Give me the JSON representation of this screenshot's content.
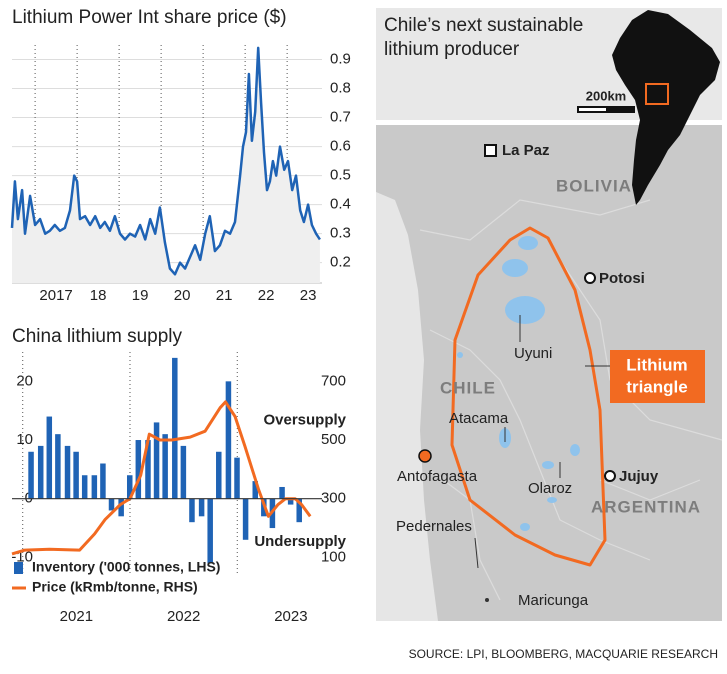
{
  "chart_data": [
    {
      "type": "line",
      "title": "Lithium Power Int share price ($)",
      "color": "#1f63b5",
      "area_color": "#efefef",
      "x": [
        2016.45,
        2016.52,
        2016.59,
        2016.69,
        2016.76,
        2016.88,
        2017.0,
        2017.12,
        2017.24,
        2017.35,
        2017.47,
        2017.59,
        2017.71,
        2017.83,
        2017.93,
        2018.0,
        2018.07,
        2018.19,
        2018.31,
        2018.43,
        2018.55,
        2018.66,
        2018.78,
        2018.9,
        2019.02,
        2019.14,
        2019.26,
        2019.38,
        2019.5,
        2019.62,
        2019.74,
        2019.86,
        2019.97,
        2020.09,
        2020.21,
        2020.33,
        2020.45,
        2020.57,
        2020.69,
        2020.81,
        2020.93,
        2021.05,
        2021.16,
        2021.28,
        2021.4,
        2021.52,
        2021.64,
        2021.76,
        2021.88,
        2021.95,
        2022.02,
        2022.09,
        2022.16,
        2022.24,
        2022.31,
        2022.38,
        2022.45,
        2022.52,
        2022.59,
        2022.66,
        2022.74,
        2022.83,
        2022.93,
        2023.02,
        2023.12,
        2023.21,
        2023.31,
        2023.4,
        2023.5,
        2023.59,
        2023.69,
        2023.78
      ],
      "values": [
        0.32,
        0.48,
        0.35,
        0.45,
        0.3,
        0.43,
        0.33,
        0.35,
        0.3,
        0.31,
        0.33,
        0.31,
        0.32,
        0.38,
        0.5,
        0.48,
        0.35,
        0.36,
        0.33,
        0.36,
        0.32,
        0.34,
        0.31,
        0.36,
        0.3,
        0.28,
        0.3,
        0.29,
        0.33,
        0.28,
        0.35,
        0.3,
        0.39,
        0.27,
        0.18,
        0.16,
        0.2,
        0.18,
        0.22,
        0.26,
        0.21,
        0.3,
        0.36,
        0.24,
        0.26,
        0.31,
        0.3,
        0.34,
        0.5,
        0.6,
        0.65,
        0.85,
        0.62,
        0.72,
        0.94,
        0.75,
        0.58,
        0.45,
        0.48,
        0.55,
        0.5,
        0.6,
        0.52,
        0.55,
        0.45,
        0.5,
        0.38,
        0.34,
        0.4,
        0.33,
        0.3,
        0.28
      ],
      "xlim": [
        2016.45,
        2023.83
      ],
      "xticks": [
        {
          "value": 2017,
          "label": "2017"
        },
        {
          "value": 2018,
          "label": "18"
        },
        {
          "value": 2019,
          "label": "19"
        },
        {
          "value": 2020,
          "label": "20"
        },
        {
          "value": 2021,
          "label": "21"
        },
        {
          "value": 2022,
          "label": "22"
        },
        {
          "value": 2023,
          "label": "23"
        }
      ],
      "ylim": [
        0.13,
        0.95
      ],
      "yticks": [
        0.2,
        0.3,
        0.4,
        0.5,
        0.6,
        0.7,
        0.8,
        0.9
      ],
      "grid": true
    },
    {
      "type": "bar",
      "title": "China lithium supply",
      "series": [
        {
          "name": "Inventory ('000 tonnes, LHS)",
          "color": "#1f63b5",
          "type": "bar",
          "x": [
            2021.08,
            2021.17,
            2021.25,
            2021.33,
            2021.42,
            2021.5,
            2021.58,
            2021.67,
            2021.75,
            2021.83,
            2021.92,
            2022,
            2022.08,
            2022.17,
            2022.25,
            2022.33,
            2022.42,
            2022.5,
            2022.58,
            2022.67,
            2022.75,
            2022.83,
            2022.92,
            2023,
            2023.08,
            2023.17,
            2023.25,
            2023.33,
            2023.42,
            2023.5,
            2023.58
          ],
          "values": [
            8,
            9,
            14,
            11,
            9,
            8,
            4,
            4,
            6,
            -2,
            -3,
            4,
            10,
            10,
            13,
            11,
            24,
            9,
            -4,
            -3,
            -11,
            8,
            20,
            7,
            -7,
            3,
            -3,
            -5,
            2,
            -1,
            -4
          ]
        },
        {
          "name": "Price (kRmb/tonne, RHS)",
          "color": "#f26a21",
          "type": "line",
          "axis": "y2",
          "x": [
            2020.9,
            2021.02,
            2021.25,
            2021.53,
            2021.67,
            2021.77,
            2021.91,
            2022.0,
            2022.1,
            2022.18,
            2022.28,
            2022.39,
            2022.56,
            2022.7,
            2022.84,
            2022.89,
            2022.98,
            2023.07,
            2023.2,
            2023.29,
            2023.38,
            2023.45,
            2023.54,
            2023.6,
            2023.68
          ],
          "values": [
            112,
            125,
            128,
            125,
            180,
            230,
            280,
            300,
            380,
            520,
            500,
            500,
            510,
            530,
            610,
            630,
            580,
            480,
            330,
            240,
            280,
            300,
            300,
            280,
            240
          ]
        }
      ],
      "annotations": [
        "Oversupply",
        "Undersupply"
      ],
      "xlim": [
        2020.9,
        2023.79
      ],
      "xticks": [
        2021,
        2022,
        2023
      ],
      "ylim": [
        -13,
        25
      ],
      "yticks": [
        -10,
        0,
        10,
        20
      ],
      "y2lim": [
        40,
        800
      ],
      "y2ticks": [
        100,
        300,
        500,
        700
      ]
    }
  ],
  "map": {
    "title": [
      "Chile’s next sustainable",
      "lithium producer"
    ],
    "scale": "200km",
    "places": {
      "la_paz": "La Paz",
      "bolivia": "BOLIVIA",
      "potosi": "Potosi",
      "uyuni": "Uyuni",
      "chile": "CHILE",
      "atacama": "Atacama",
      "antofagasta": "Antofagasta",
      "olaroz": "Olaroz",
      "jujuy": "Jujuy",
      "argentina": "ARGENTINA",
      "pedernales": "Pedernales",
      "maricunga": "Maricunga"
    },
    "callout": [
      "Lithium",
      "triangle"
    ]
  },
  "source": "SOURCE: LPI, BLOOMBERG, MACQUARIE RESEARCH"
}
